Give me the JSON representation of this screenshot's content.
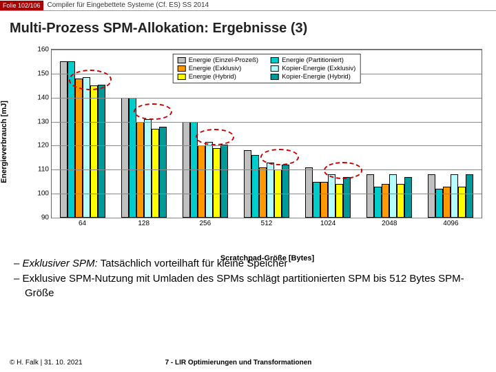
{
  "header": {
    "slide": "Folie 102/106",
    "course": "Compiler für Eingebettete Systeme (Cf. ES) SS 2014"
  },
  "title": "Multi-Prozess SPM-Allokation: Ergebnisse (3)",
  "chart": {
    "type": "bar",
    "ylabel": "Energieverbrauch [mJ]",
    "xlabel": "Scratchpad-Größe [Bytes]",
    "ylim": [
      90,
      160
    ],
    "ytick_step": 10,
    "categories": [
      "64",
      "128",
      "256",
      "512",
      "1024",
      "2048",
      "4096"
    ],
    "series": [
      {
        "name": "Energie (Einzel-Prozeß)",
        "color": "#c0c0c0"
      },
      {
        "name": "Energie (Partitioniert)",
        "color": "#00cccc"
      },
      {
        "name": "Energie (Exklusiv)",
        "color": "#ff9900"
      },
      {
        "name": "Kopier-Energie (Exklusiv)",
        "color": "#b3ffff"
      },
      {
        "name": "Energie (Hybrid)",
        "color": "#ffff00"
      },
      {
        "name": "Kopier-Energie (Hybrid)",
        "color": "#009999"
      }
    ],
    "values": [
      [
        155,
        155,
        148,
        148.5,
        145,
        145.5
      ],
      [
        140,
        140,
        130,
        131,
        127,
        128
      ],
      [
        130,
        130,
        120,
        121.5,
        119,
        120.5
      ],
      [
        118,
        116,
        111,
        113,
        110,
        112
      ],
      [
        111,
        105,
        105,
        108,
        104,
        107
      ],
      [
        108,
        103,
        104,
        108,
        104,
        107
      ],
      [
        108,
        102,
        103,
        108,
        103,
        108
      ]
    ],
    "legend_bg": "#ffffff",
    "ellipses": [
      {
        "left_pct": 4.0,
        "top_pct": 12,
        "w_pct": 10,
        "h_pct": 12
      },
      {
        "left_pct": 19.0,
        "top_pct": 32,
        "w_pct": 9,
        "h_pct": 10
      },
      {
        "left_pct": 33.5,
        "top_pct": 47,
        "w_pct": 9,
        "h_pct": 10
      },
      {
        "left_pct": 48.5,
        "top_pct": 59,
        "w_pct": 9,
        "h_pct": 10
      },
      {
        "left_pct": 63.3,
        "top_pct": 67,
        "w_pct": 9,
        "h_pct": 10
      }
    ]
  },
  "bullets": [
    {
      "pre": "Exklusiver SPM:",
      "text": " Tatsächlich vorteilhaft für kleine Speicher"
    },
    {
      "pre": "",
      "text": "Exklusive SPM-Nutzung mit Umladen des SPMs schlägt partitionierten SPM bis 512 Bytes SPM-Größe"
    }
  ],
  "footer": {
    "copyright": "© H. Falk | 31. 10. 2021",
    "section": "7 - LIR Optimierungen und Transformationen"
  }
}
